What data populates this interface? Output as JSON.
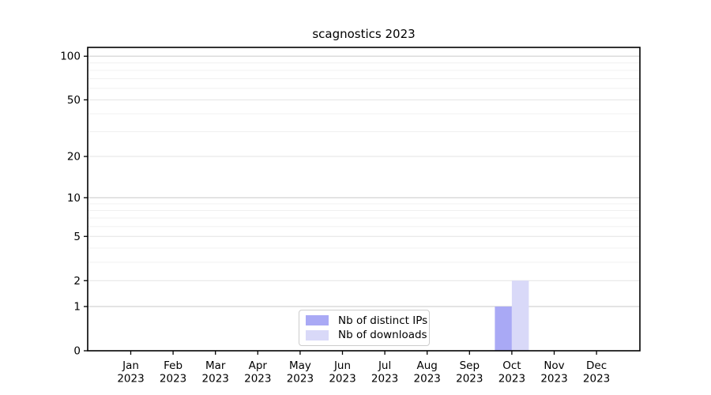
{
  "chart_data": {
    "type": "bar",
    "title": "scagnostics 2023",
    "categories": [
      "Jan",
      "Feb",
      "Mar",
      "Apr",
      "May",
      "Jun",
      "Jul",
      "Aug",
      "Sep",
      "Oct",
      "Nov",
      "Dec"
    ],
    "year_label": "2023",
    "series": [
      {
        "name": "Nb of distinct IPs",
        "color": "#a9a9f5",
        "values": [
          0,
          0,
          0,
          0,
          0,
          0,
          0,
          0,
          0,
          1,
          0,
          0
        ]
      },
      {
        "name": "Nb of downloads",
        "color": "#d9d9f8",
        "values": [
          0,
          0,
          0,
          0,
          0,
          0,
          0,
          0,
          0,
          2,
          0,
          0
        ]
      }
    ],
    "xlabel": "",
    "ylabel": "",
    "yscale": "log1p",
    "ylim": [
      0,
      115
    ],
    "yticks": [
      0,
      1,
      2,
      5,
      10,
      20,
      50,
      100
    ],
    "yticks_minor": [
      3,
      4,
      6,
      7,
      8,
      9,
      30,
      40,
      60,
      70,
      80,
      90
    ],
    "grid": true,
    "grid_axis": "y",
    "legend_position": "lower center (inside plot)"
  }
}
